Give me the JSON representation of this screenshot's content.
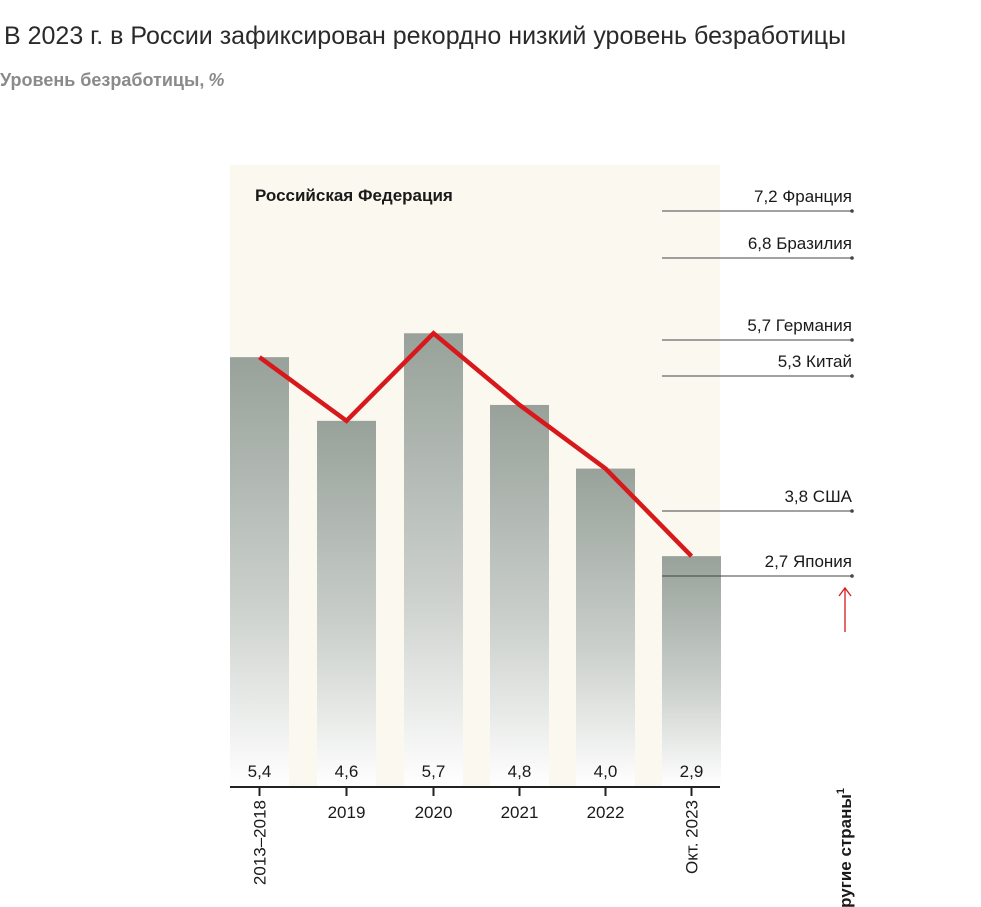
{
  "title": "В 2023 г. в России зафиксирован рекордно низкий уровень безработицы",
  "subtitle": "Уровень безработицы,",
  "subtitle_unit": "%",
  "chart_data": {
    "type": "bar",
    "panel_label": "Российская Федерация",
    "categories": [
      "2013–2018",
      "2019",
      "2020",
      "2021",
      "2022",
      "Окт. 2023"
    ],
    "values": [
      5.4,
      4.6,
      5.7,
      4.8,
      4.0,
      2.9
    ],
    "value_labels": [
      "5,4",
      "4,6",
      "5,7",
      "4,8",
      "4,0",
      "2,9"
    ],
    "line_overlay": true,
    "line_color": "#d7191c",
    "bar_color_top": "#98a19a",
    "bar_color_bottom": "#ffffff",
    "panel_color": "#fbf8ef",
    "ylim": [
      0,
      7.9
    ],
    "reference_title": "Другие страны",
    "reference_title_sup": "1",
    "references": [
      {
        "value": 7.2,
        "label": "7,2 Франция"
      },
      {
        "value": 6.8,
        "label": "6,8 Бразилия"
      },
      {
        "value": 5.7,
        "label": "5,7 Германия"
      },
      {
        "value": 5.3,
        "label": "5,3 Китай"
      },
      {
        "value": 3.8,
        "label": "3,8 США"
      },
      {
        "value": 2.7,
        "label": "2,7 Япония"
      }
    ]
  }
}
